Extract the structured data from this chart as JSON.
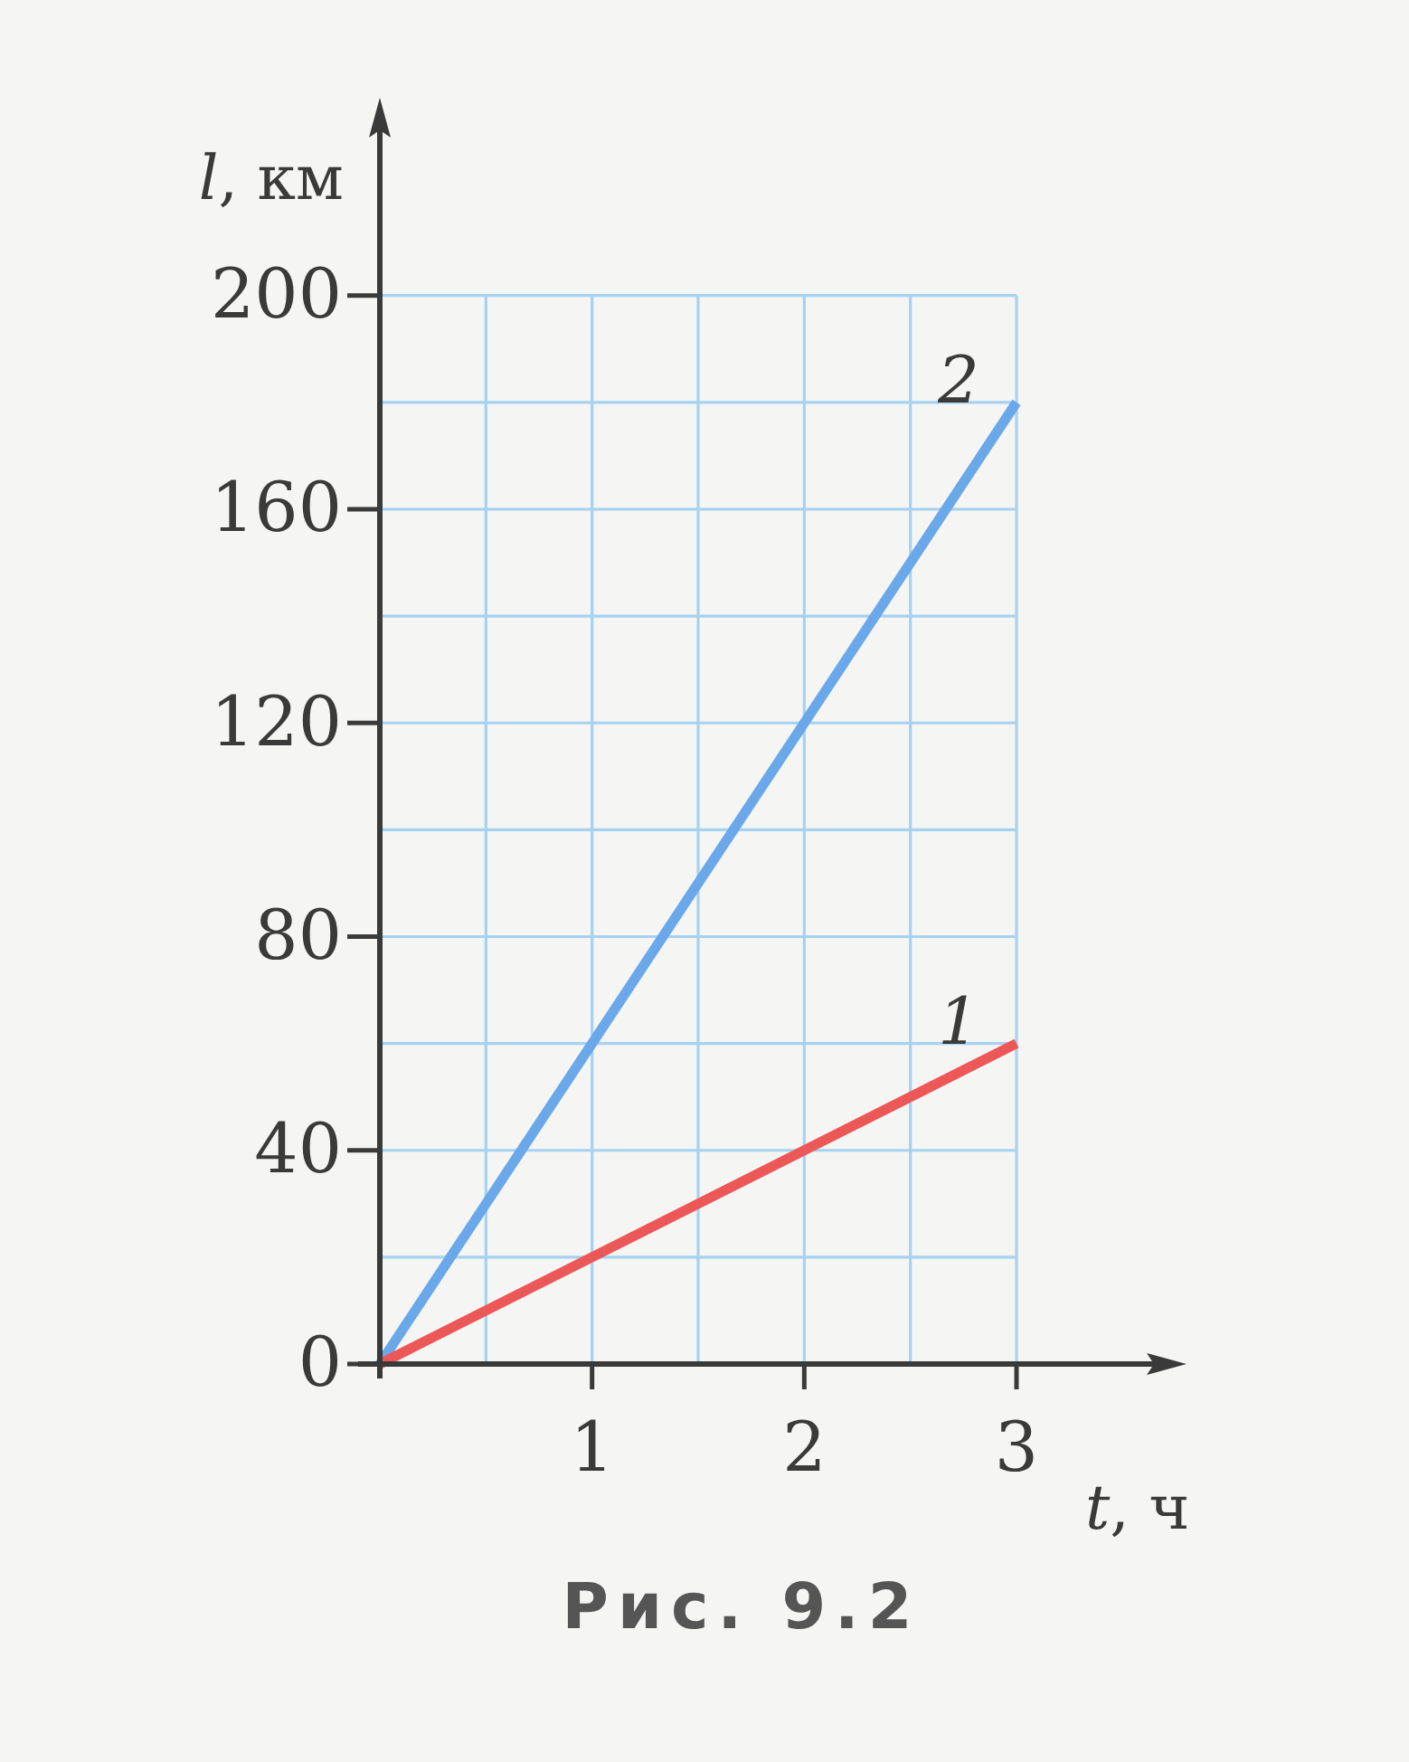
{
  "chart_data": {
    "type": "line",
    "xlabel": "t, ч",
    "ylabel": "l, км",
    "x": [
      0,
      3
    ],
    "series": [
      {
        "name": "2",
        "color": "#6aa8ea",
        "values": [
          0,
          180
        ]
      },
      {
        "name": "1",
        "color": "#ec5858",
        "values": [
          0,
          60
        ]
      }
    ],
    "xlim": [
      0,
      3.75
    ],
    "ylim": [
      0,
      235
    ],
    "xticks": [
      {
        "value": 0.5,
        "label": null
      },
      1,
      {
        "value": 1.5,
        "label": null
      },
      2,
      {
        "value": 2.5,
        "label": null
      },
      3
    ],
    "yticks": [
      0,
      {
        "value": 20,
        "label": null
      },
      40,
      {
        "value": 60,
        "label": null
      },
      80,
      {
        "value": 100,
        "label": null
      },
      120,
      {
        "value": 140,
        "label": null
      },
      160,
      {
        "value": 180,
        "label": null
      },
      200
    ],
    "grid": true,
    "line_style": "solid",
    "legend": false,
    "annotations": [
      "Рис. 9.2"
    ]
  }
}
